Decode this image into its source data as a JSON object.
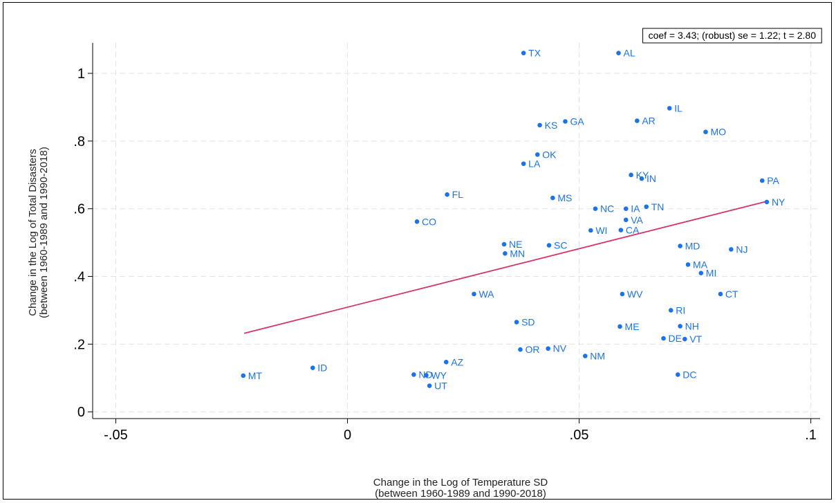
{
  "chart_data": {
    "type": "scatter",
    "annotation": "coef = 3.43; (robust) se = 1.22; t = 2.80",
    "xlabel": [
      "Change in the Log of Temperature SD",
      "(between 1960-1989 and 1990-2018)"
    ],
    "ylabel": [
      "Change in the Log of Total Disasters",
      "(between 1960-1989 and 1990-2018)"
    ],
    "xlim": [
      -0.055,
      0.102
    ],
    "ylim": [
      -0.02,
      1.09
    ],
    "x_ticks": [
      {
        "value": -0.05,
        "label": "-.05"
      },
      {
        "value": 0,
        "label": "0"
      },
      {
        "value": 0.05,
        "label": ".05"
      },
      {
        "value": 0.1,
        "label": ".1"
      }
    ],
    "y_ticks": [
      {
        "value": 0,
        "label": "0"
      },
      {
        "value": 0.2,
        "label": ".2"
      },
      {
        "value": 0.4,
        "label": ".4"
      },
      {
        "value": 0.6,
        "label": ".6"
      },
      {
        "value": 0.8,
        "label": ".8"
      },
      {
        "value": 1,
        "label": "1"
      }
    ],
    "grid": true,
    "point_color": "#1a73e8",
    "fit_color": "#d6336c",
    "fit_line": {
      "x": [
        -0.0223,
        0.0905
      ],
      "y": [
        0.232,
        0.622
      ]
    },
    "points": [
      {
        "label": "TX",
        "x": 0.038,
        "y": 1.06
      },
      {
        "label": "AL",
        "x": 0.0585,
        "y": 1.06
      },
      {
        "label": "IL",
        "x": 0.0695,
        "y": 0.897
      },
      {
        "label": "AR",
        "x": 0.0625,
        "y": 0.86
      },
      {
        "label": "GA",
        "x": 0.047,
        "y": 0.858
      },
      {
        "label": "KS",
        "x": 0.0415,
        "y": 0.847
      },
      {
        "label": "MO",
        "x": 0.0773,
        "y": 0.827
      },
      {
        "label": "OK",
        "x": 0.041,
        "y": 0.76
      },
      {
        "label": "LA",
        "x": 0.038,
        "y": 0.733
      },
      {
        "label": "KY",
        "x": 0.0612,
        "y": 0.7
      },
      {
        "label": "IN",
        "x": 0.0635,
        "y": 0.689
      },
      {
        "label": "PA",
        "x": 0.0895,
        "y": 0.683
      },
      {
        "label": "FL",
        "x": 0.0215,
        "y": 0.642
      },
      {
        "label": "MS",
        "x": 0.0443,
        "y": 0.632
      },
      {
        "label": "NY",
        "x": 0.0905,
        "y": 0.62
      },
      {
        "label": "TN",
        "x": 0.0645,
        "y": 0.606
      },
      {
        "label": "NC",
        "x": 0.0535,
        "y": 0.6
      },
      {
        "label": "IA",
        "x": 0.0601,
        "y": 0.6
      },
      {
        "label": "VA",
        "x": 0.0601,
        "y": 0.567
      },
      {
        "label": "CO",
        "x": 0.015,
        "y": 0.562
      },
      {
        "label": "WI",
        "x": 0.0525,
        "y": 0.536
      },
      {
        "label": "CA",
        "x": 0.059,
        "y": 0.537
      },
      {
        "label": "NE",
        "x": 0.0338,
        "y": 0.495
      },
      {
        "label": "SC",
        "x": 0.0435,
        "y": 0.492
      },
      {
        "label": "MD",
        "x": 0.0718,
        "y": 0.49
      },
      {
        "label": "NJ",
        "x": 0.0828,
        "y": 0.48
      },
      {
        "label": "MN",
        "x": 0.034,
        "y": 0.468
      },
      {
        "label": "MA",
        "x": 0.0735,
        "y": 0.435
      },
      {
        "label": "MI",
        "x": 0.0763,
        "y": 0.41
      },
      {
        "label": "WA",
        "x": 0.0273,
        "y": 0.348
      },
      {
        "label": "WV",
        "x": 0.0593,
        "y": 0.348
      },
      {
        "label": "CT",
        "x": 0.0805,
        "y": 0.348
      },
      {
        "label": "RI",
        "x": 0.0698,
        "y": 0.3
      },
      {
        "label": "SD",
        "x": 0.0365,
        "y": 0.265
      },
      {
        "label": "ME",
        "x": 0.0588,
        "y": 0.252
      },
      {
        "label": "NH",
        "x": 0.0718,
        "y": 0.253
      },
      {
        "label": "DE",
        "x": 0.0682,
        "y": 0.217
      },
      {
        "label": "VT",
        "x": 0.0728,
        "y": 0.215
      },
      {
        "label": "OR",
        "x": 0.0373,
        "y": 0.184
      },
      {
        "label": "NV",
        "x": 0.0433,
        "y": 0.187
      },
      {
        "label": "NM",
        "x": 0.0513,
        "y": 0.165
      },
      {
        "label": "AZ",
        "x": 0.0213,
        "y": 0.147
      },
      {
        "label": "ID",
        "x": -0.0075,
        "y": 0.13
      },
      {
        "label": "MT",
        "x": -0.0225,
        "y": 0.107
      },
      {
        "label": "ND",
        "x": 0.0143,
        "y": 0.11
      },
      {
        "label": "WY",
        "x": 0.017,
        "y": 0.108
      },
      {
        "label": "UT",
        "x": 0.0177,
        "y": 0.077
      },
      {
        "label": "DC",
        "x": 0.0713,
        "y": 0.11
      }
    ]
  }
}
